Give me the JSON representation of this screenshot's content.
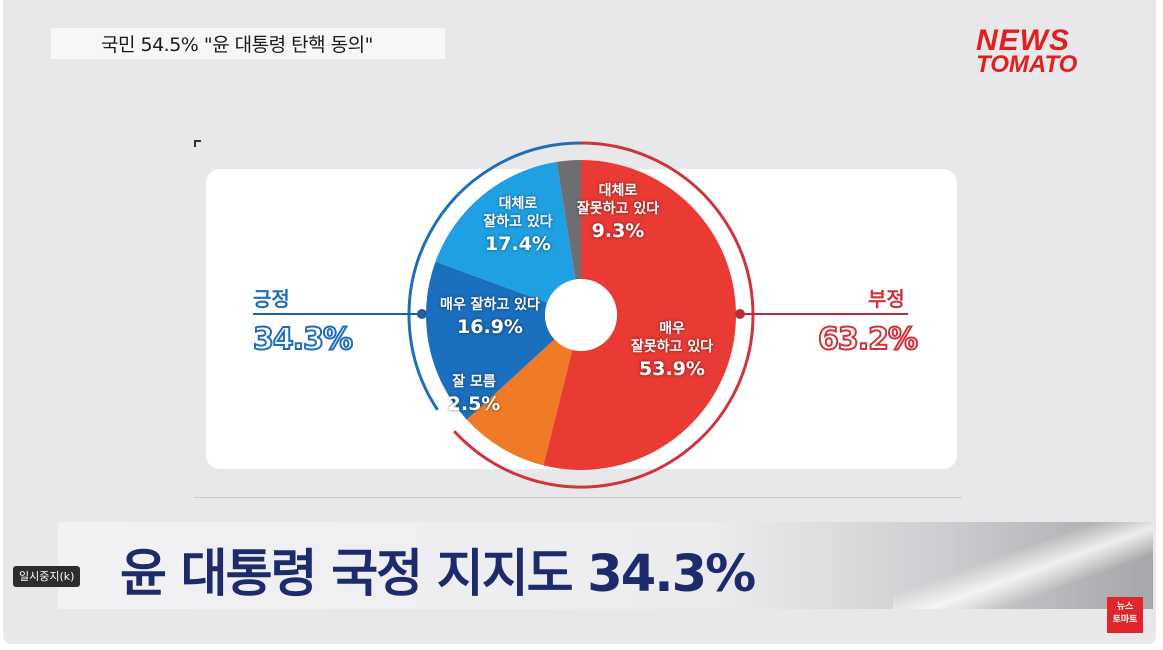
{
  "banner": {
    "text": "국민 54.5% \"윤 대통령 탄핵 동의\""
  },
  "logo": {
    "line1": "NEWS",
    "line2": "TOMATO"
  },
  "chart_data": {
    "type": "pie",
    "categories": [
      "매우 잘못하고 있다",
      "대체로 잘못하고 있다",
      "대체로 잘하고 있다",
      "매우 잘하고 있다",
      "잘 모름"
    ],
    "values": [
      53.9,
      9.3,
      17.4,
      16.9,
      2.5
    ],
    "colors": [
      "#e93a34",
      "#f07a26",
      "#1a6fbe",
      "#1ea0e2",
      "#6d6e72"
    ],
    "groups": [
      {
        "name": "긍정",
        "value": "34.3%",
        "color": "#1f6fb8"
      },
      {
        "name": "부정",
        "value": "63.2%",
        "color": "#d0333b"
      }
    ]
  },
  "labels": {
    "seg0": {
      "text": "매우\n잘못하고 있다",
      "pct": "53.9%"
    },
    "seg1": {
      "text": "대체로\n잘못하고 있다",
      "pct": "9.3%"
    },
    "seg2": {
      "text": "대체로\n잘하고 있다",
      "pct": "17.4%"
    },
    "seg3": {
      "text": "매우 잘하고 있다",
      "pct": "16.9%"
    },
    "seg4": {
      "text": "잘 모름",
      "pct": "2.5%"
    }
  },
  "headline": {
    "text": "윤 대통령 국정 지지도 34.3%"
  },
  "tooltip": {
    "text": "일시중지(k)"
  },
  "badge": {
    "line1": "뉴스",
    "line2": "토마토"
  }
}
